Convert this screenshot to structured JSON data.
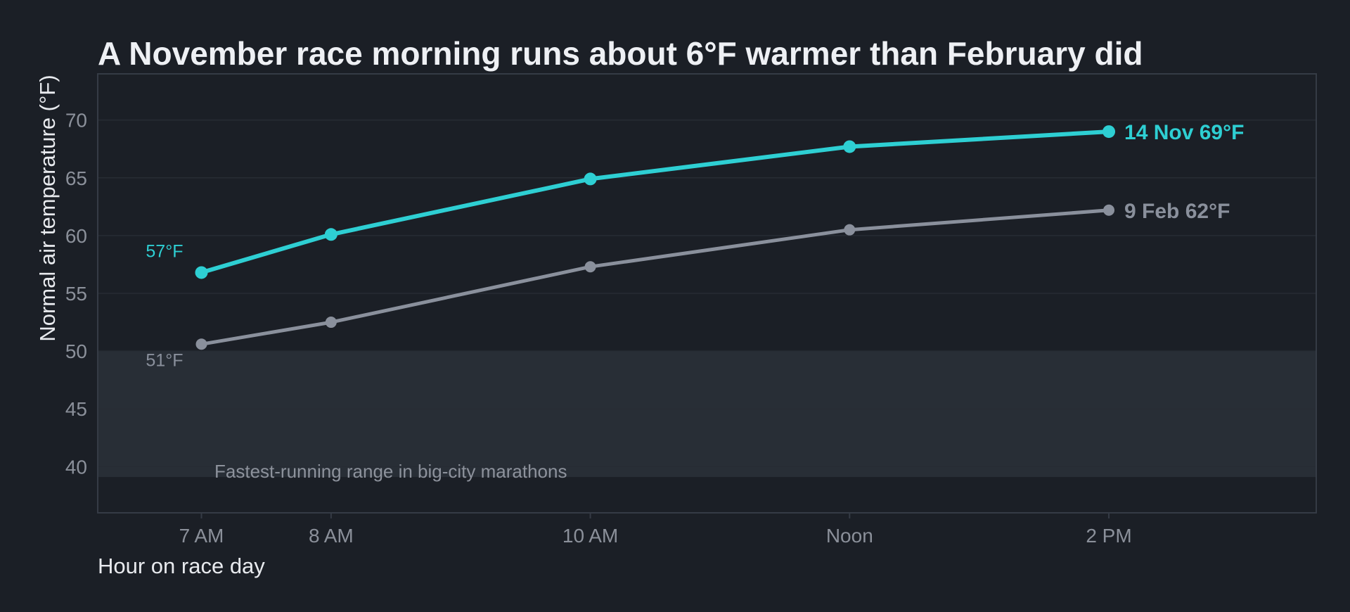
{
  "chart_data": {
    "type": "line",
    "title": "A November race morning runs about 6°F warmer than February did",
    "xlabel": "Hour on race day",
    "ylabel": "Normal air temperature (°F)",
    "x": [
      7,
      8,
      10,
      12,
      14
    ],
    "x_tick_labels": [
      "7 AM",
      "8 AM",
      "10 AM",
      "Noon",
      "2 PM"
    ],
    "xlim": [
      6.2,
      15.6
    ],
    "ylim": [
      36,
      74
    ],
    "y_ticks": [
      40,
      45,
      50,
      55,
      60,
      65,
      70
    ],
    "grid": true,
    "series": [
      {
        "name": "14 Nov",
        "values": [
          56.8,
          60.1,
          64.9,
          67.7,
          69.0
        ],
        "color": "#2ecfd3",
        "start_label": "57°F",
        "end_label": "14 Nov  69°F"
      },
      {
        "name": "9 Feb",
        "values": [
          50.6,
          52.5,
          57.3,
          60.5,
          62.2
        ],
        "color": "#8a909c",
        "start_label": "51°F",
        "end_label": "9 Feb  62°F"
      }
    ],
    "shaded_band": {
      "y_range": [
        39.1,
        50
      ],
      "label": "Fastest-running range in big-city marathons",
      "color": "#282e36"
    },
    "colors": {
      "background": "#1b1f26",
      "plot_border": "#353b45",
      "grid": "#272c34",
      "tick_text": "#8b909a",
      "axis_label_text": "#e8eaee",
      "title_text": "#eef0f4"
    }
  }
}
